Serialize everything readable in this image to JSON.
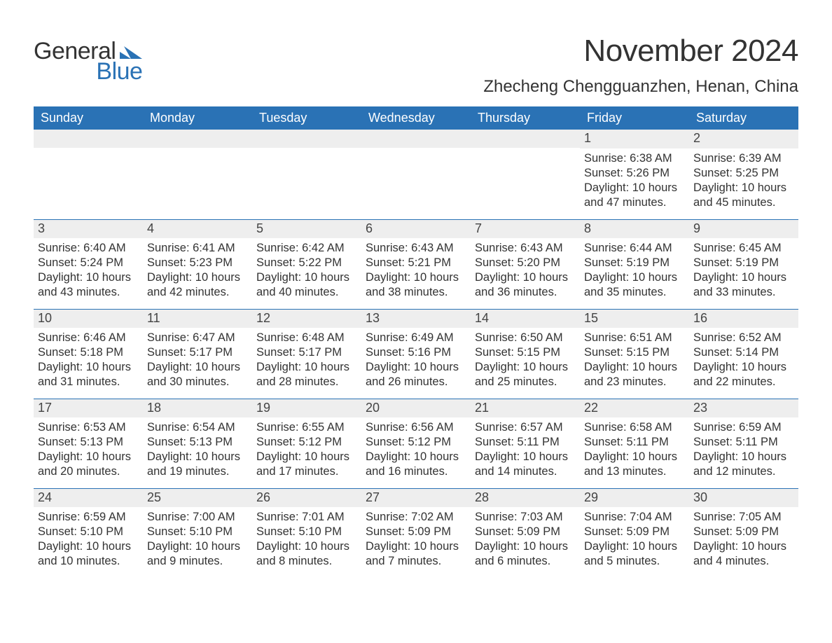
{
  "colors": {
    "header_bg": "#2a72b5",
    "header_text": "#ffffff",
    "daynum_bg": "#eeeeee",
    "daynum_text": "#444444",
    "body_text": "#333333",
    "page_bg": "#ffffff",
    "row_border": "#2a72b5",
    "logo_text_dark": "#333333",
    "logo_text_blue": "#2a72b5"
  },
  "typography": {
    "month_title_fontsize": 44,
    "location_fontsize": 24,
    "dayheader_fontsize": 18,
    "daynum_fontsize": 18,
    "body_fontsize": 16.5,
    "logo_fontsize": 34
  },
  "logo": {
    "word1": "General",
    "word2": "Blue"
  },
  "title": "November 2024",
  "location": "Zhecheng Chengguanzhen, Henan, China",
  "day_headers": [
    "Sunday",
    "Monday",
    "Tuesday",
    "Wednesday",
    "Thursday",
    "Friday",
    "Saturday"
  ],
  "weeks": [
    [
      null,
      null,
      null,
      null,
      null,
      {
        "n": "1",
        "sunrise": "6:38 AM",
        "sunset": "5:26 PM",
        "daylight": "10 hours and 47 minutes."
      },
      {
        "n": "2",
        "sunrise": "6:39 AM",
        "sunset": "5:25 PM",
        "daylight": "10 hours and 45 minutes."
      }
    ],
    [
      {
        "n": "3",
        "sunrise": "6:40 AM",
        "sunset": "5:24 PM",
        "daylight": "10 hours and 43 minutes."
      },
      {
        "n": "4",
        "sunrise": "6:41 AM",
        "sunset": "5:23 PM",
        "daylight": "10 hours and 42 minutes."
      },
      {
        "n": "5",
        "sunrise": "6:42 AM",
        "sunset": "5:22 PM",
        "daylight": "10 hours and 40 minutes."
      },
      {
        "n": "6",
        "sunrise": "6:43 AM",
        "sunset": "5:21 PM",
        "daylight": "10 hours and 38 minutes."
      },
      {
        "n": "7",
        "sunrise": "6:43 AM",
        "sunset": "5:20 PM",
        "daylight": "10 hours and 36 minutes."
      },
      {
        "n": "8",
        "sunrise": "6:44 AM",
        "sunset": "5:19 PM",
        "daylight": "10 hours and 35 minutes."
      },
      {
        "n": "9",
        "sunrise": "6:45 AM",
        "sunset": "5:19 PM",
        "daylight": "10 hours and 33 minutes."
      }
    ],
    [
      {
        "n": "10",
        "sunrise": "6:46 AM",
        "sunset": "5:18 PM",
        "daylight": "10 hours and 31 minutes."
      },
      {
        "n": "11",
        "sunrise": "6:47 AM",
        "sunset": "5:17 PM",
        "daylight": "10 hours and 30 minutes."
      },
      {
        "n": "12",
        "sunrise": "6:48 AM",
        "sunset": "5:17 PM",
        "daylight": "10 hours and 28 minutes."
      },
      {
        "n": "13",
        "sunrise": "6:49 AM",
        "sunset": "5:16 PM",
        "daylight": "10 hours and 26 minutes."
      },
      {
        "n": "14",
        "sunrise": "6:50 AM",
        "sunset": "5:15 PM",
        "daylight": "10 hours and 25 minutes."
      },
      {
        "n": "15",
        "sunrise": "6:51 AM",
        "sunset": "5:15 PM",
        "daylight": "10 hours and 23 minutes."
      },
      {
        "n": "16",
        "sunrise": "6:52 AM",
        "sunset": "5:14 PM",
        "daylight": "10 hours and 22 minutes."
      }
    ],
    [
      {
        "n": "17",
        "sunrise": "6:53 AM",
        "sunset": "5:13 PM",
        "daylight": "10 hours and 20 minutes."
      },
      {
        "n": "18",
        "sunrise": "6:54 AM",
        "sunset": "5:13 PM",
        "daylight": "10 hours and 19 minutes."
      },
      {
        "n": "19",
        "sunrise": "6:55 AM",
        "sunset": "5:12 PM",
        "daylight": "10 hours and 17 minutes."
      },
      {
        "n": "20",
        "sunrise": "6:56 AM",
        "sunset": "5:12 PM",
        "daylight": "10 hours and 16 minutes."
      },
      {
        "n": "21",
        "sunrise": "6:57 AM",
        "sunset": "5:11 PM",
        "daylight": "10 hours and 14 minutes."
      },
      {
        "n": "22",
        "sunrise": "6:58 AM",
        "sunset": "5:11 PM",
        "daylight": "10 hours and 13 minutes."
      },
      {
        "n": "23",
        "sunrise": "6:59 AM",
        "sunset": "5:11 PM",
        "daylight": "10 hours and 12 minutes."
      }
    ],
    [
      {
        "n": "24",
        "sunrise": "6:59 AM",
        "sunset": "5:10 PM",
        "daylight": "10 hours and 10 minutes."
      },
      {
        "n": "25",
        "sunrise": "7:00 AM",
        "sunset": "5:10 PM",
        "daylight": "10 hours and 9 minutes."
      },
      {
        "n": "26",
        "sunrise": "7:01 AM",
        "sunset": "5:10 PM",
        "daylight": "10 hours and 8 minutes."
      },
      {
        "n": "27",
        "sunrise": "7:02 AM",
        "sunset": "5:09 PM",
        "daylight": "10 hours and 7 minutes."
      },
      {
        "n": "28",
        "sunrise": "7:03 AM",
        "sunset": "5:09 PM",
        "daylight": "10 hours and 6 minutes."
      },
      {
        "n": "29",
        "sunrise": "7:04 AM",
        "sunset": "5:09 PM",
        "daylight": "10 hours and 5 minutes."
      },
      {
        "n": "30",
        "sunrise": "7:05 AM",
        "sunset": "5:09 PM",
        "daylight": "10 hours and 4 minutes."
      }
    ]
  ],
  "labels": {
    "sunrise": "Sunrise:",
    "sunset": "Sunset:",
    "daylight": "Daylight:"
  }
}
